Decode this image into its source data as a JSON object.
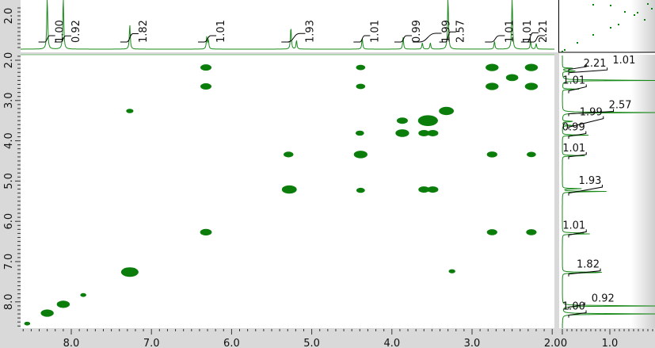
{
  "chart_data": {
    "type": "heatmap",
    "subtype": "2D NMR contour plot (COSY) with 1D projections",
    "x_axis": {
      "ticks": [
        "8.0",
        "7.0",
        "6.0",
        "5.0",
        "4.0",
        "3.0",
        "2.0"
      ],
      "range": [
        8.6,
        1.97
      ],
      "reversed": true
    },
    "y_axis": {
      "ticks": [
        "2.0",
        "3.0",
        "4.0",
        "5.0",
        "6.0",
        "7.0",
        "8.0"
      ],
      "range": [
        1.85,
        8.67
      ],
      "reversed": true
    },
    "projection_axis": {
      "ticks": [
        "0",
        "1.0"
      ]
    },
    "top_projection_label": "2.0",
    "colors": {
      "contour": "#0a7d0a",
      "spectrum": "#1a8a1a",
      "integral": "#000000",
      "axis_bg": "#d9d9d9"
    },
    "peaks_1d": [
      {
        "ppm": 8.3,
        "height": 1.3
      },
      {
        "ppm": 8.1,
        "height": 1.3
      },
      {
        "ppm": 7.27,
        "height": 0.62
      },
      {
        "ppm": 6.31,
        "height": 0.3
      },
      {
        "ppm": 6.29,
        "height": 0.22
      },
      {
        "ppm": 5.26,
        "height": 0.55
      },
      {
        "ppm": 5.19,
        "height": 0.22
      },
      {
        "ppm": 4.37,
        "height": 0.28
      },
      {
        "ppm": 3.86,
        "height": 0.3
      },
      {
        "ppm": 3.62,
        "height": 0.16
      },
      {
        "ppm": 3.52,
        "height": 0.16
      },
      {
        "ppm": 3.3,
        "height": 1.3
      },
      {
        "ppm": 2.72,
        "height": 0.2
      },
      {
        "ppm": 2.5,
        "height": 1.3
      },
      {
        "ppm": 2.27,
        "height": 0.2
      },
      {
        "ppm": 2.2,
        "height": 0.14
      }
    ],
    "integrals": [
      {
        "range": [
          8.33,
          8.27
        ],
        "value": "1.00"
      },
      {
        "range": [
          8.13,
          8.07
        ],
        "value": "0.92"
      },
      {
        "range": [
          7.31,
          7.23
        ],
        "value": "1.82"
      },
      {
        "range": [
          6.34,
          6.26
        ],
        "value": "1.01"
      },
      {
        "range": [
          5.3,
          5.15
        ],
        "value": "1.93"
      },
      {
        "range": [
          4.4,
          4.34
        ],
        "value": "1.01"
      },
      {
        "range": [
          3.89,
          3.82
        ],
        "value": "0.99"
      },
      {
        "range": [
          3.66,
          3.45
        ],
        "value": "1.99"
      },
      {
        "range": [
          3.33,
          3.27
        ],
        "value": "2.57"
      },
      {
        "range": [
          2.76,
          2.66
        ],
        "value": "1.01"
      },
      {
        "range": [
          2.31,
          2.24
        ],
        "value": "2.21"
      },
      {
        "range": [
          2.23,
          2.16
        ],
        "value": "1.01"
      }
    ],
    "cross_peaks": [
      {
        "x": 6.32,
        "y": 2.18,
        "size": 1
      },
      {
        "x": 6.32,
        "y": 2.65,
        "size": 1
      },
      {
        "x": 4.39,
        "y": 2.18,
        "size": 0.7
      },
      {
        "x": 4.39,
        "y": 2.65,
        "size": 0.7
      },
      {
        "x": 2.75,
        "y": 2.18,
        "size": 1.3
      },
      {
        "x": 2.26,
        "y": 2.18,
        "size": 1.3
      },
      {
        "x": 2.5,
        "y": 2.43,
        "size": 1.2
      },
      {
        "x": 2.75,
        "y": 2.65,
        "size": 1.3
      },
      {
        "x": 2.26,
        "y": 2.65,
        "size": 1.3
      },
      {
        "x": 7.27,
        "y": 3.26,
        "size": 0.4
      },
      {
        "x": 3.32,
        "y": 3.26,
        "size": 1.6
      },
      {
        "x": 3.87,
        "y": 3.5,
        "size": 1
      },
      {
        "x": 3.55,
        "y": 3.5,
        "size": 2.4
      },
      {
        "x": 4.4,
        "y": 3.81,
        "size": 0.6
      },
      {
        "x": 3.87,
        "y": 3.81,
        "size": 1.4
      },
      {
        "x": 3.6,
        "y": 3.81,
        "size": 1
      },
      {
        "x": 3.49,
        "y": 3.81,
        "size": 1
      },
      {
        "x": 5.29,
        "y": 4.34,
        "size": 0.8
      },
      {
        "x": 4.39,
        "y": 4.34,
        "size": 1.4
      },
      {
        "x": 2.75,
        "y": 4.34,
        "size": 0.9
      },
      {
        "x": 2.26,
        "y": 4.34,
        "size": 0.7
      },
      {
        "x": 5.28,
        "y": 5.21,
        "size": 1.6
      },
      {
        "x": 4.39,
        "y": 5.23,
        "size": 0.6
      },
      {
        "x": 3.6,
        "y": 5.21,
        "size": 1
      },
      {
        "x": 3.49,
        "y": 5.21,
        "size": 1
      },
      {
        "x": 6.32,
        "y": 6.27,
        "size": 1.1
      },
      {
        "x": 2.75,
        "y": 6.27,
        "size": 0.9
      },
      {
        "x": 2.26,
        "y": 6.27,
        "size": 0.9
      },
      {
        "x": 3.25,
        "y": 7.24,
        "size": 0.3
      },
      {
        "x": 7.27,
        "y": 7.26,
        "size": 2.0
      },
      {
        "x": 7.85,
        "y": 7.83,
        "size": 0.2
      },
      {
        "x": 8.1,
        "y": 8.06,
        "size": 1.3
      },
      {
        "x": 8.3,
        "y": 8.28,
        "size": 1.3
      },
      {
        "x": 8.55,
        "y": 8.54,
        "size": 0.2
      }
    ]
  }
}
